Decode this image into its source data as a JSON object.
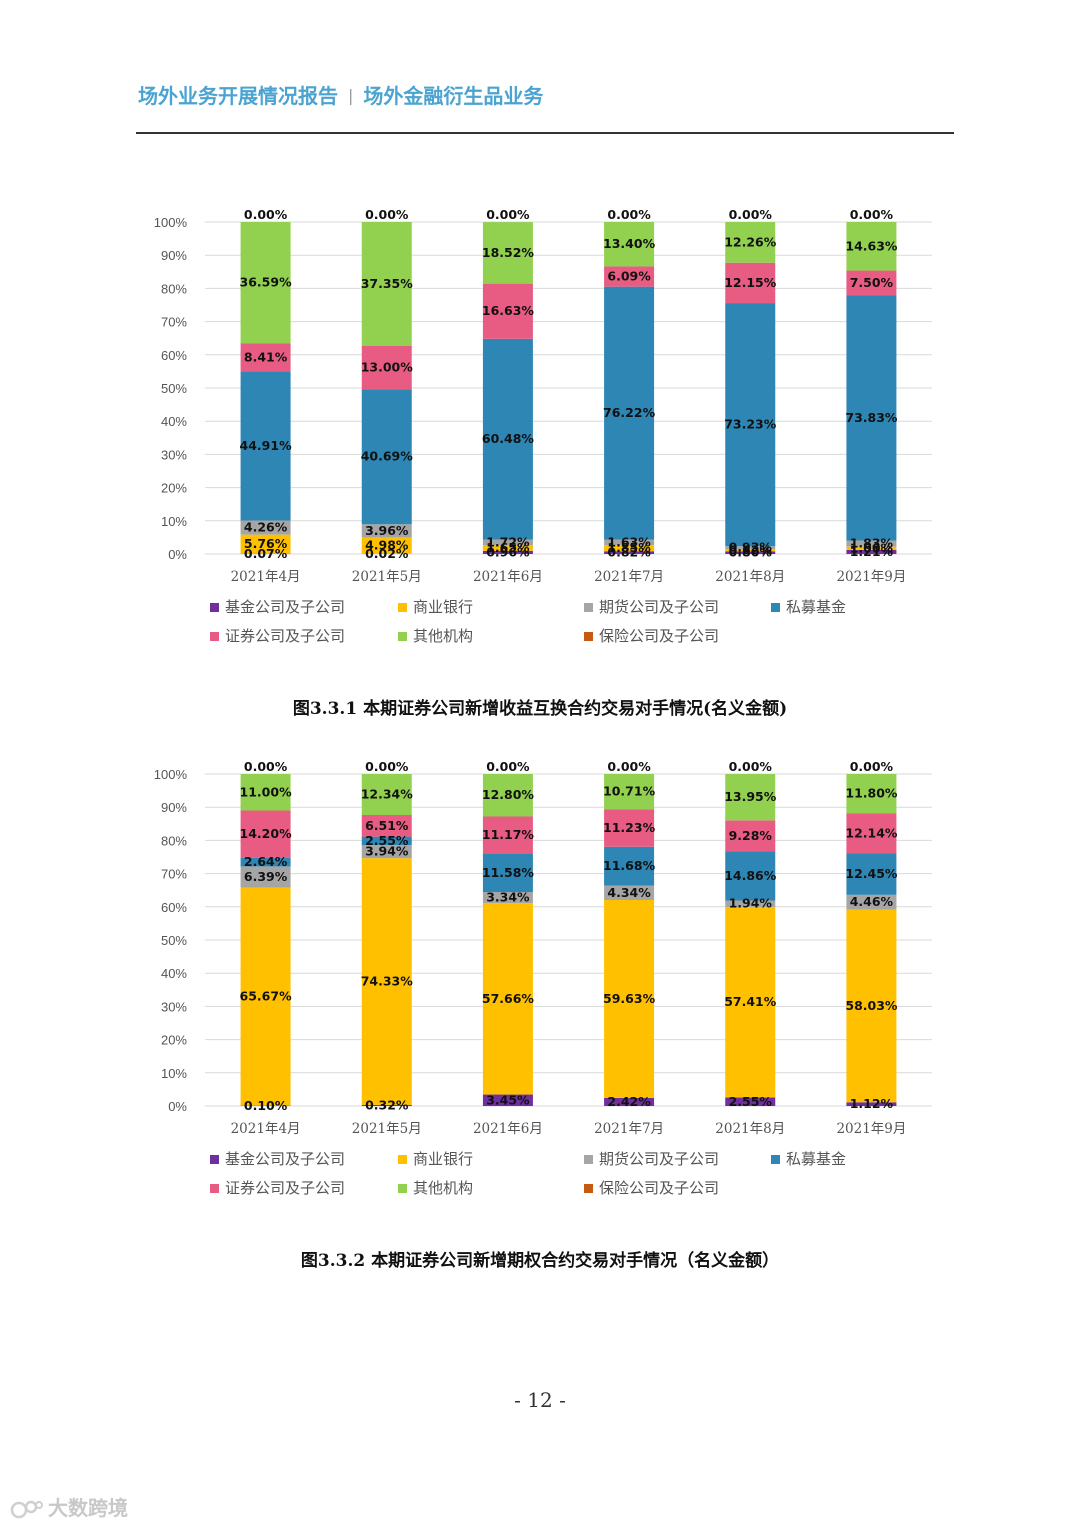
{
  "header": {
    "left": "场外业务开展情况报告",
    "separator": "|",
    "right": "场外金融衍生品业务"
  },
  "colors": {
    "基金公司及子公司": "#6f2f9f",
    "商业银行": "#ffc000",
    "期货公司及子公司": "#a5a5a5",
    "私募基金": "#2e86b5",
    "证券公司及子公司": "#e85c84",
    "其他机构": "#92d050",
    "保险公司及子公司": "#c55a11"
  },
  "chart_data": [
    {
      "type": "bar",
      "stacked": true,
      "title": "图3.3.1 本期证券公司新增收益互换合约交易对手情况(名义金额)",
      "categories": [
        "2021年4月",
        "2021年5月",
        "2021年6月",
        "2021年7月",
        "2021年8月",
        "2021年9月"
      ],
      "ylim": [
        0,
        100
      ],
      "yticks": [
        "0%",
        "10%",
        "20%",
        "30%",
        "40%",
        "50%",
        "60%",
        "70%",
        "80%",
        "90%",
        "100%"
      ],
      "legend": [
        "基金公司及子公司",
        "商业银行",
        "期货公司及子公司",
        "私募基金",
        "证券公司及子公司",
        "其他机构",
        "保险公司及子公司"
      ],
      "series": [
        {
          "name": "基金公司及子公司",
          "values": [
            0.07,
            0.02,
            0.96,
            0.82,
            0.8,
            1.21
          ],
          "labels": [
            "0.07%",
            "0.02%",
            "0.96%",
            "0.82%",
            "0.80%",
            "1.21%"
          ]
        },
        {
          "name": "商业银行",
          "values": [
            5.76,
            4.98,
            1.65,
            1.85,
            0.62,
            1.0
          ],
          "labels": [
            "5.76%",
            "4.98%",
            "1.65%",
            "1.85%",
            "0.62%",
            "1.00%"
          ]
        },
        {
          "name": "期货公司及子公司",
          "values": [
            4.26,
            3.96,
            1.72,
            1.63,
            0.93,
            1.83
          ],
          "labels": [
            "4.26%",
            "3.96%",
            "1.72%",
            "1.63%",
            "0.93%",
            "1.83%"
          ]
        },
        {
          "name": "私募基金",
          "values": [
            44.91,
            40.69,
            60.48,
            76.22,
            73.23,
            73.83
          ],
          "labels": [
            "44.91%",
            "40.69%",
            "60.48%",
            "76.22%",
            "73.23%",
            "73.83%"
          ]
        },
        {
          "name": "证券公司及子公司",
          "values": [
            8.41,
            13.0,
            16.63,
            6.09,
            12.15,
            7.5
          ],
          "labels": [
            "8.41%",
            "13.00%",
            "16.63%",
            "6.09%",
            "12.15%",
            "7.50%"
          ]
        },
        {
          "name": "其他机构",
          "values": [
            36.59,
            37.35,
            18.52,
            13.4,
            12.26,
            14.63
          ],
          "labels": [
            "36.59%",
            "37.35%",
            "18.52%",
            "13.40%",
            "12.26%",
            "14.63%"
          ]
        },
        {
          "name": "保险公司及子公司",
          "values": [
            0,
            0,
            0,
            0,
            0,
            0
          ],
          "labels": [
            "0.00%",
            "0.00%",
            "0.00%",
            "0.00%",
            "0.00%",
            "0.00%"
          ]
        }
      ]
    },
    {
      "type": "bar",
      "stacked": true,
      "title": "图3.3.2 本期证券公司新增期权合约交易对手情况（名义金额）",
      "categories": [
        "2021年4月",
        "2021年5月",
        "2021年6月",
        "2021年7月",
        "2021年8月",
        "2021年9月"
      ],
      "ylim": [
        0,
        100
      ],
      "yticks": [
        "0%",
        "10%",
        "20%",
        "30%",
        "40%",
        "50%",
        "60%",
        "70%",
        "80%",
        "90%",
        "100%"
      ],
      "legend": [
        "基金公司及子公司",
        "商业银行",
        "期货公司及子公司",
        "私募基金",
        "证券公司及子公司",
        "其他机构",
        "保险公司及子公司"
      ],
      "series": [
        {
          "name": "基金公司及子公司",
          "values": [
            0.1,
            0.32,
            3.45,
            2.42,
            2.55,
            1.12
          ],
          "labels": [
            "0.10%",
            "0.32%",
            "3.45%",
            "2.42%",
            "2.55%",
            "1.12%"
          ]
        },
        {
          "name": "商业银行",
          "values": [
            65.67,
            74.33,
            57.66,
            59.63,
            57.41,
            58.03
          ],
          "labels": [
            "65.67%",
            "74.33%",
            "57.66%",
            "59.63%",
            "57.41%",
            "58.03%"
          ]
        },
        {
          "name": "期货公司及子公司",
          "values": [
            6.39,
            3.94,
            3.34,
            4.34,
            1.94,
            4.46
          ],
          "labels": [
            "6.39%",
            "3.94%",
            "3.34%",
            "4.34%",
            "1.94%",
            "4.46%"
          ]
        },
        {
          "name": "私募基金",
          "values": [
            2.64,
            2.55,
            11.58,
            11.68,
            14.86,
            12.45
          ],
          "labels": [
            "2.64%",
            "2.55%",
            "11.58%",
            "11.68%",
            "14.86%",
            "12.45%"
          ]
        },
        {
          "name": "证券公司及子公司",
          "values": [
            14.2,
            6.51,
            11.17,
            11.23,
            9.28,
            12.14
          ],
          "labels": [
            "14.20%",
            "6.51%",
            "11.17%",
            "11.23%",
            "9.28%",
            "12.14%"
          ]
        },
        {
          "name": "其他机构",
          "values": [
            11.0,
            12.34,
            12.8,
            10.71,
            13.95,
            11.8
          ],
          "labels": [
            "11.00%",
            "12.34%",
            "12.80%",
            "10.71%",
            "13.95%",
            "11.80%"
          ]
        },
        {
          "name": "保险公司及子公司",
          "values": [
            0,
            0,
            0,
            0,
            0,
            0
          ],
          "labels": [
            "0.00%",
            "0.00%",
            "0.00%",
            "0.00%",
            "0.00%",
            "0.00%"
          ]
        }
      ]
    }
  ],
  "page_number": "- 12 -",
  "watermark": "大数跨境"
}
